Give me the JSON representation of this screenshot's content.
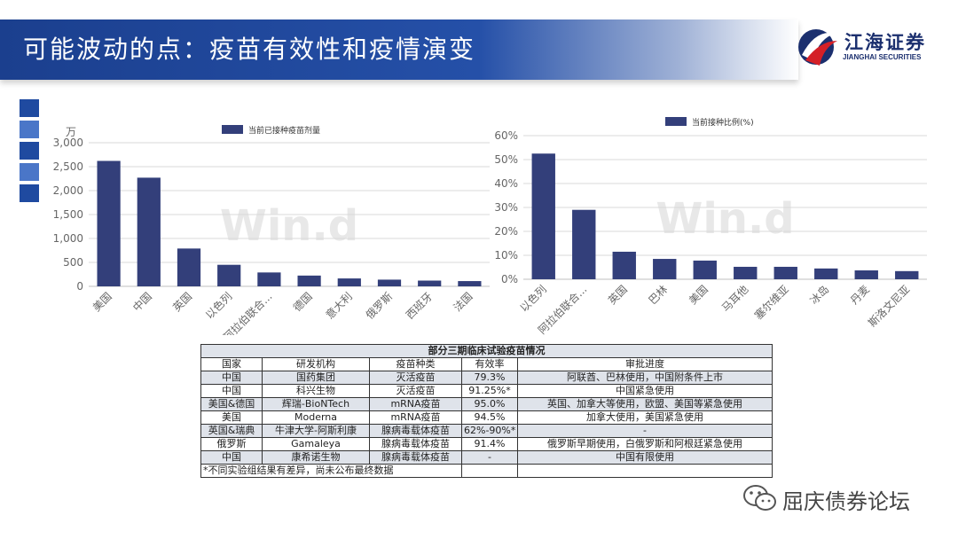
{
  "header": {
    "title": "可能波动的点：疫苗有效性和疫情演变"
  },
  "logo": {
    "name_cn": "江海证券",
    "name_en": "JIANGHAI SECURITIES"
  },
  "colors": {
    "brand": "#1b3f8e",
    "bar": "#333f7a",
    "table_shade": "#dfe3ea"
  },
  "charts": {
    "watermark": "Win.d"
  },
  "chart_data": [
    {
      "type": "bar",
      "unit_label": "万",
      "legend": "当前已接种疫苗剂量",
      "categories": [
        "美国",
        "中国",
        "英国",
        "以色列",
        "阿拉伯联合...",
        "德国",
        "意大利",
        "俄罗斯",
        "西班牙",
        "法国"
      ],
      "values": [
        2620,
        2270,
        790,
        450,
        290,
        225,
        165,
        140,
        120,
        110
      ],
      "ylim": [
        0,
        3000
      ],
      "yticks": [
        "0",
        "500",
        "1,000",
        "1,500",
        "2,000",
        "2,500",
        "3,000"
      ],
      "grid": true
    },
    {
      "type": "bar",
      "legend": "当前接种比例(%)",
      "categories": [
        "以色列",
        "阿拉伯联合...",
        "英国",
        "巴林",
        "美国",
        "马耳他",
        "塞尔维亚",
        "冰岛",
        "丹麦",
        "斯洛文尼亚"
      ],
      "values": [
        52.5,
        29.0,
        11.5,
        8.5,
        7.8,
        5.2,
        5.2,
        4.5,
        3.7,
        3.4
      ],
      "ylim": [
        0,
        60
      ],
      "yticks": [
        "0%",
        "10%",
        "20%",
        "30%",
        "40%",
        "50%",
        "60%"
      ],
      "grid": true
    }
  ],
  "table": {
    "caption": "部分三期临床试验疫苗情况",
    "headers": [
      "国家",
      "研发机构",
      "疫苗种类",
      "有效率",
      "审批进度"
    ],
    "rows": [
      [
        "中国",
        "国药集团",
        "灭活疫苗",
        "79.3%",
        "阿联酋、巴林使用，中国附条件上市"
      ],
      [
        "中国",
        "科兴生物",
        "灭活疫苗",
        "91.25%*",
        "中国紧急使用"
      ],
      [
        "美国&德国",
        "辉瑞-BioNTech",
        "mRNA疫苗",
        "95.0%",
        "英国、加拿大等使用，欧盟、美国等紧急使用"
      ],
      [
        "美国",
        "Moderna",
        "mRNA疫苗",
        "94.5%",
        "加拿大使用，美国紧急使用"
      ],
      [
        "英国&瑞典",
        "牛津大学-阿斯利康",
        "腺病毒载体疫苗",
        "62%-90%*",
        "-"
      ],
      [
        "俄罗斯",
        "Gamaleya",
        "腺病毒载体疫苗",
        "91.4%",
        "俄罗斯早期使用，白俄罗斯和阿根廷紧急使用"
      ],
      [
        "中国",
        "康希诺生物",
        "腺病毒载体疫苗",
        "-",
        "中国有限使用"
      ]
    ],
    "note": "*不同实验组结果有差异，尚未公布最终数据"
  },
  "watermark": {
    "text": "屈庆债券论坛"
  }
}
